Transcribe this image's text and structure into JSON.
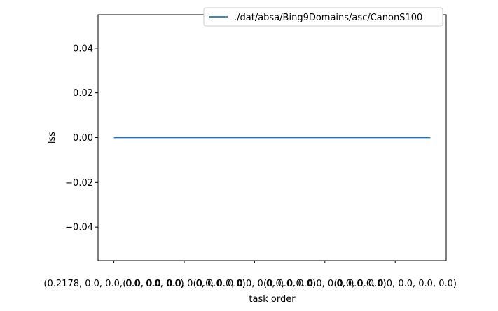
{
  "chart_data": {
    "type": "line",
    "xlabel": "task order",
    "ylabel": "lss",
    "ylim": [
      -0.055,
      0.055
    ],
    "yticks": [
      -0.04,
      -0.02,
      0.0,
      0.02,
      0.04
    ],
    "ytick_labels": [
      "−0.04",
      "−0.02",
      "0.00",
      "0.02",
      "0.04"
    ],
    "xlim": [
      -0.225,
      4.725
    ],
    "xticks": [
      0,
      1,
      2,
      3,
      4
    ],
    "xtick_labels": [
      "(0.2178, 0.0, 0.0, 0.0, 0.0, 0.0)",
      "(0.0, 0.0, 0.0, 0.0, 0.0, 0.0)",
      "(0.0, 0.0, 0.0, 0.0, 0.0, 0.0)",
      "(0.0, 0.0, 0.0, 0.0, 0.0, 0.0)",
      "(0.0, 0.0, 0.0, 0.0, 0.0, 0.0)"
    ],
    "grid": false,
    "legend_position": "upper right",
    "series": [
      {
        "name": "./dat/absa/Bing9Domains/asc/CanonS100",
        "color": "#1f77b4",
        "x": [
          0,
          4.5
        ],
        "y": [
          0.0,
          0.0
        ]
      }
    ]
  }
}
